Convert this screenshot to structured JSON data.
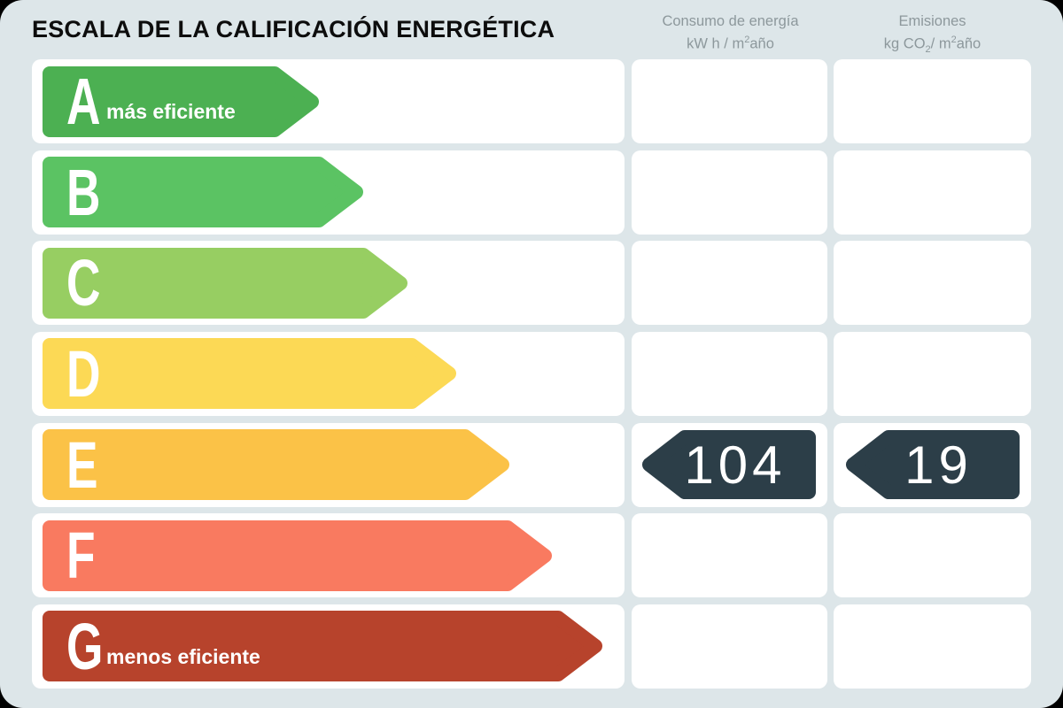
{
  "title": "ESCALA DE LA CALIFICACIÓN ENERGÉTICA",
  "colors": {
    "page_background": "#000000",
    "panel_background": "#dde6e9",
    "cell_background": "#ffffff",
    "header_text": "#8d989c",
    "title_text": "#0d0d0d",
    "value_arrow": "#2c3e48"
  },
  "columns": {
    "consumo": {
      "line1": "Consumo de energía",
      "l2a": "kW h / m",
      "l2sup": "2",
      "l2b": "año"
    },
    "emisiones": {
      "line1": "Emisiones",
      "l2a": "kg CO",
      "l2sub": "2",
      "l2b": "/ m",
      "l2sup": "2",
      "l2c": "año"
    }
  },
  "scale": {
    "value_arrow_color": "#2c3e48",
    "rows": [
      {
        "letter": "A",
        "label": "más eficiente",
        "color": "#4cb052",
        "arrow_width": 312,
        "consumo_value": "",
        "emisiones_value": ""
      },
      {
        "letter": "B",
        "label": "",
        "color": "#5bc363",
        "arrow_width": 362,
        "consumo_value": "",
        "emisiones_value": ""
      },
      {
        "letter": "C",
        "label": "",
        "color": "#97ce62",
        "arrow_width": 412,
        "consumo_value": "",
        "emisiones_value": ""
      },
      {
        "letter": "D",
        "label": "",
        "color": "#fcd955",
        "arrow_width": 467,
        "consumo_value": "",
        "emisiones_value": ""
      },
      {
        "letter": "E",
        "label": "",
        "color": "#fbc247",
        "arrow_width": 527,
        "consumo_value": "104",
        "emisiones_value": "19"
      },
      {
        "letter": "F",
        "label": "",
        "color": "#f97a60",
        "arrow_width": 575,
        "consumo_value": "",
        "emisiones_value": ""
      },
      {
        "letter": "G",
        "label": "menos eficiente",
        "color": "#b7432c",
        "arrow_width": 632,
        "consumo_value": "",
        "emisiones_value": ""
      }
    ]
  },
  "chart_data": {
    "type": "bar",
    "title": "ESCALA DE LA CALIFICACIÓN ENERGÉTICA",
    "categories": [
      "A",
      "B",
      "C",
      "D",
      "E",
      "F",
      "G"
    ],
    "values": [
      312,
      362,
      412,
      467,
      527,
      575,
      632
    ],
    "value_meaning": "relative bar length in px (rating scale, not measured data)",
    "bar_colors": [
      "#4cb052",
      "#5bc363",
      "#97ce62",
      "#fcd955",
      "#fbc247",
      "#f97a60",
      "#b7432c"
    ],
    "category_labels": {
      "A": "más eficiente",
      "G": "menos eficiente"
    },
    "columns": [
      "Consumo de energía kW h / m²año",
      "Emisiones kg CO₂/ m²año"
    ],
    "rating": "E",
    "consumo_kwh_m2ano": 104,
    "emisiones_kgco2_m2ano": 19,
    "legend_position": "none",
    "grid": false
  }
}
